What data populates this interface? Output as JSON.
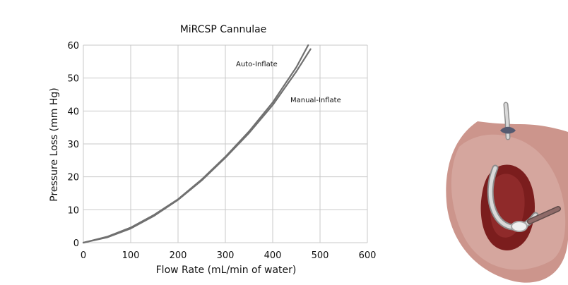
{
  "chart_data": {
    "type": "line",
    "title": "MiRCSP Cannulae",
    "xlabel": "Flow Rate (mL/min of water)",
    "ylabel": "Pressure Loss (mm Hg)",
    "xlim": [
      0,
      600
    ],
    "ylim": [
      0,
      60
    ],
    "xticks": [
      0,
      100,
      200,
      300,
      400,
      500,
      600
    ],
    "yticks": [
      0,
      10,
      20,
      30,
      40,
      50,
      60
    ],
    "grid": true,
    "series": [
      {
        "name": "Auto-Inflate",
        "x": [
          0,
          50,
          100,
          150,
          200,
          250,
          300,
          350,
          400,
          450,
          475
        ],
        "y": [
          0,
          1.8,
          4.6,
          8.5,
          13.2,
          19.2,
          26.1,
          33.8,
          42.6,
          53.3,
          60.0
        ]
      },
      {
        "name": "Manual-Inflate",
        "x": [
          0,
          50,
          100,
          150,
          200,
          250,
          300,
          350,
          400,
          450,
          480
        ],
        "y": [
          0,
          1.6,
          4.3,
          8.2,
          13.0,
          18.9,
          25.8,
          33.3,
          41.8,
          52.0,
          58.8
        ]
      }
    ],
    "annotations": [
      {
        "text": "Auto-Inflate",
        "x": 0,
        "y": 0
      },
      {
        "text": "Manual-Inflate",
        "x": 0,
        "y": 0
      }
    ],
    "colors": {
      "series": "#707070",
      "grid": "#c9c9c9",
      "text": "#111111"
    }
  },
  "illustration": {
    "name": "cannula-in-heart-illustration",
    "colors": {
      "tissue": "#c98f86",
      "chamber": "#7b1d1d",
      "tube": "#d9d9d9",
      "tube_shadow": "#8d8d8d"
    }
  }
}
